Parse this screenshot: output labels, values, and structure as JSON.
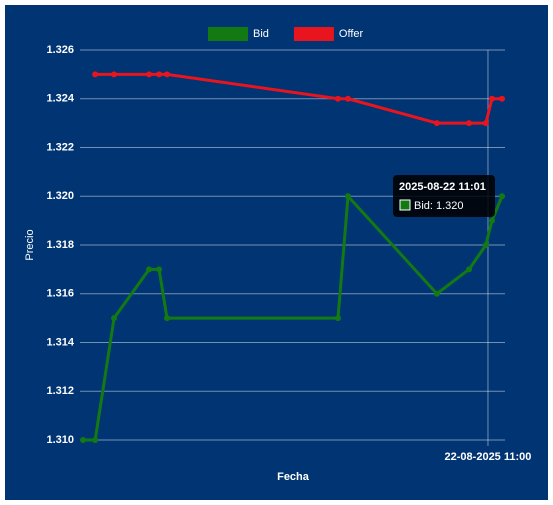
{
  "chart_data": {
    "type": "line",
    "x_label": "Fecha",
    "y_label": "Precio",
    "x": [
      "2025-08-22 10:31:04",
      "2025-08-22 10:31:56",
      "2025-08-22 10:33:17",
      "2025-08-22 10:35:47",
      "2025-08-22 10:36:30",
      "2025-08-22 10:37:04",
      "2025-08-22 10:49:17",
      "2025-08-22 10:50:00",
      "2025-08-22 10:56:21",
      "2025-08-22 10:58:39",
      "2025-08-22 10:59:51",
      "2025-08-22 11:00:17",
      "2025-08-22 11:01:00"
    ],
    "series": [
      {
        "name": "Bid",
        "color": "#137a13",
        "values": [
          1.31,
          1.31,
          1.315,
          1.317,
          1.317,
          1.315,
          1.315,
          1.32,
          1.316,
          1.317,
          1.318,
          1.319,
          1.32
        ]
      },
      {
        "name": "Offer",
        "color": "#e8141e",
        "values": [
          null,
          1.325,
          1.325,
          1.325,
          1.325,
          1.325,
          1.324,
          1.324,
          1.323,
          1.323,
          1.323,
          1.324,
          1.324
        ]
      }
    ],
    "xlim": [
      "2025-08-22 10:30:51",
      "2025-08-22 11:01:13"
    ],
    "xticks": [
      {
        "value": "2025-08-22 11:00:00",
        "label": "22-08-2025 11:00"
      }
    ],
    "ylim": [
      1.31,
      1.326
    ],
    "yticks": [
      {
        "value": 1.31,
        "label": "1.310"
      },
      1.312,
      1.314,
      1.316,
      1.318,
      {
        "value": 1.32,
        "label": "1.320"
      },
      1.322,
      1.324,
      1.326
    ],
    "grid": true,
    "legend": "top",
    "tooltip": {
      "title": "2025-08-22 11:01",
      "label": "Bid: 1.320"
    }
  }
}
